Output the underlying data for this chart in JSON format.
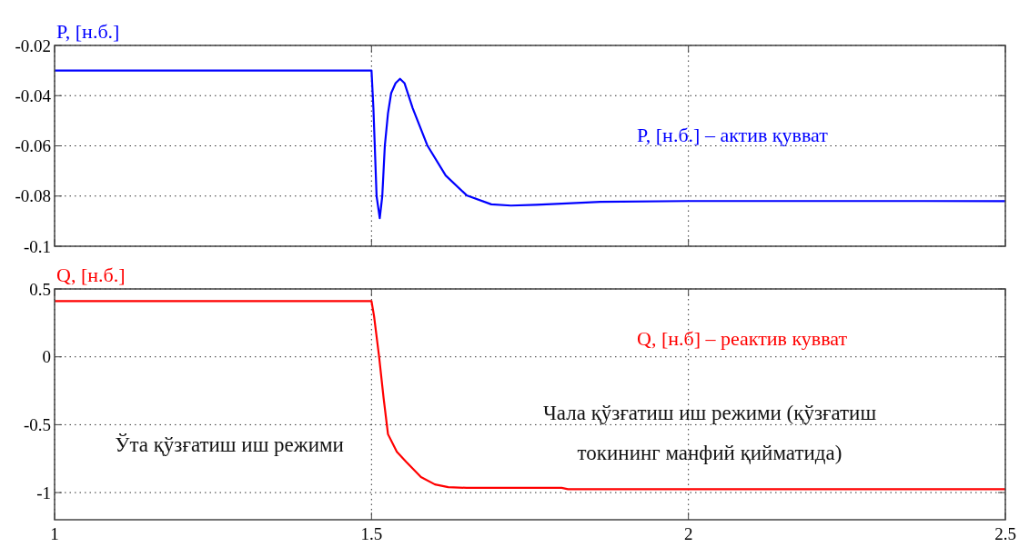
{
  "chart_data": [
    {
      "type": "line",
      "ylabel": "P, [н.б.]",
      "xlim": [
        1,
        2.5
      ],
      "xticks": [
        1,
        1.5,
        2,
        2.5
      ],
      "ylim": [
        -0.1,
        -0.02
      ],
      "yticks": [
        -0.02,
        -0.04,
        -0.06,
        -0.08,
        -0.1
      ],
      "grid": true,
      "tick_labels": "y",
      "line_style": "solid",
      "series": [
        {
          "name": "P, [н.б.] – актив қувват",
          "color": "#0000ff",
          "x": [
            1,
            1.5,
            1.503,
            1.508,
            1.513,
            1.517,
            1.521,
            1.526,
            1.531,
            1.538,
            1.545,
            1.552,
            1.565,
            1.588,
            1.617,
            1.65,
            1.689,
            1.72,
            1.76,
            1.8,
            1.861,
            2,
            2.5
          ],
          "values": [
            -0.03,
            -0.03,
            -0.045,
            -0.08,
            -0.0888,
            -0.08,
            -0.06,
            -0.047,
            -0.039,
            -0.035,
            -0.0333,
            -0.035,
            -0.045,
            -0.0598,
            -0.0718,
            -0.0797,
            -0.0833,
            -0.0838,
            -0.0835,
            -0.083,
            -0.0823,
            -0.082,
            -0.082
          ]
        }
      ]
    },
    {
      "type": "line",
      "ylabel": "Q, [н.б.]",
      "xlim": [
        1,
        2.5
      ],
      "xticks": [
        1,
        1.5,
        2,
        2.5
      ],
      "ylim": [
        -1.2,
        0.5
      ],
      "yticks": [
        0.5,
        0,
        -0.5,
        -1
      ],
      "grid": true,
      "line_style": "solid",
      "annotations": [
        "Ўта қўзғатиш иш режими",
        "Чала қўзғатиш иш режими (қўзғатиш токининг манфий қийматида)"
      ],
      "series": [
        {
          "name": "Q, [н.б] – реактив кувват",
          "color": "#ff0000",
          "x": [
            1,
            1.5,
            1.504,
            1.512,
            1.519,
            1.526,
            1.54,
            1.555,
            1.578,
            1.6,
            1.621,
            1.65,
            1.8,
            1.81,
            2.5
          ],
          "values": [
            0.41,
            0.41,
            0.3,
            0.0,
            -0.3,
            -0.57,
            -0.7,
            -0.775,
            -0.885,
            -0.94,
            -0.96,
            -0.965,
            -0.965,
            -0.975,
            -0.975
          ]
        }
      ]
    }
  ]
}
